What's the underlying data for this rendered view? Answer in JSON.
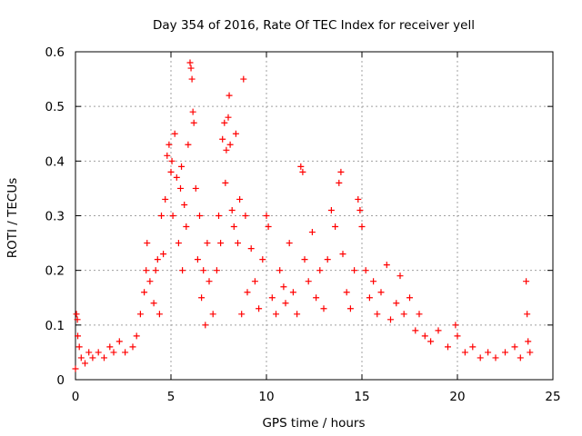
{
  "chart_data": {
    "type": "scatter",
    "title": "Day 354 of 2016, Rate Of TEC Index for receiver yell",
    "xlabel": "GPS time / hours",
    "ylabel": "ROTI / TECUs",
    "xlim": [
      0,
      25
    ],
    "ylim": [
      0,
      0.6
    ],
    "xticks": [
      0,
      5,
      10,
      15,
      20,
      25
    ],
    "xtick_labels": [
      "0",
      "5",
      "10",
      "15",
      "20",
      "25"
    ],
    "yticks": [
      0,
      0.1,
      0.2,
      0.3,
      0.4,
      0.5,
      0.6
    ],
    "ytick_labels": [
      "0",
      "0.1",
      "0.2",
      "0.3",
      "0.4",
      "0.5",
      "0.6"
    ],
    "grid": true,
    "marker": "+",
    "series": [
      {
        "name": "ROTI",
        "color": "#ff0000",
        "points": [
          [
            0.0,
            0.02
          ],
          [
            0.05,
            0.12
          ],
          [
            0.1,
            0.11
          ],
          [
            0.12,
            0.08
          ],
          [
            0.2,
            0.06
          ],
          [
            0.3,
            0.04
          ],
          [
            0.5,
            0.03
          ],
          [
            0.7,
            0.05
          ],
          [
            0.9,
            0.04
          ],
          [
            1.2,
            0.05
          ],
          [
            1.5,
            0.04
          ],
          [
            1.8,
            0.06
          ],
          [
            2.0,
            0.05
          ],
          [
            2.3,
            0.07
          ],
          [
            2.6,
            0.05
          ],
          [
            3.0,
            0.06
          ],
          [
            3.2,
            0.08
          ],
          [
            3.4,
            0.12
          ],
          [
            3.6,
            0.16
          ],
          [
            3.7,
            0.2
          ],
          [
            3.75,
            0.25
          ],
          [
            3.9,
            0.18
          ],
          [
            4.1,
            0.14
          ],
          [
            4.2,
            0.2
          ],
          [
            4.3,
            0.22
          ],
          [
            4.4,
            0.12
          ],
          [
            4.5,
            0.3
          ],
          [
            4.6,
            0.23
          ],
          [
            4.7,
            0.33
          ],
          [
            4.8,
            0.41
          ],
          [
            4.9,
            0.43
          ],
          [
            5.0,
            0.38
          ],
          [
            5.05,
            0.4
          ],
          [
            5.1,
            0.3
          ],
          [
            5.2,
            0.45
          ],
          [
            5.3,
            0.37
          ],
          [
            5.4,
            0.25
          ],
          [
            5.5,
            0.35
          ],
          [
            5.55,
            0.39
          ],
          [
            5.6,
            0.2
          ],
          [
            5.7,
            0.32
          ],
          [
            5.8,
            0.28
          ],
          [
            5.9,
            0.43
          ],
          [
            6.0,
            0.58
          ],
          [
            6.05,
            0.57
          ],
          [
            6.1,
            0.55
          ],
          [
            6.15,
            0.49
          ],
          [
            6.2,
            0.47
          ],
          [
            6.3,
            0.35
          ],
          [
            6.4,
            0.22
          ],
          [
            6.5,
            0.3
          ],
          [
            6.6,
            0.15
          ],
          [
            6.7,
            0.2
          ],
          [
            6.8,
            0.1
          ],
          [
            6.9,
            0.25
          ],
          [
            7.0,
            0.18
          ],
          [
            7.2,
            0.12
          ],
          [
            7.4,
            0.2
          ],
          [
            7.5,
            0.3
          ],
          [
            7.6,
            0.25
          ],
          [
            7.7,
            0.44
          ],
          [
            7.8,
            0.47
          ],
          [
            7.85,
            0.36
          ],
          [
            7.9,
            0.42
          ],
          [
            8.0,
            0.48
          ],
          [
            8.05,
            0.52
          ],
          [
            8.1,
            0.43
          ],
          [
            8.2,
            0.31
          ],
          [
            8.3,
            0.28
          ],
          [
            8.4,
            0.45
          ],
          [
            8.5,
            0.25
          ],
          [
            8.6,
            0.33
          ],
          [
            8.7,
            0.12
          ],
          [
            8.8,
            0.55
          ],
          [
            8.9,
            0.3
          ],
          [
            9.0,
            0.16
          ],
          [
            9.2,
            0.24
          ],
          [
            9.4,
            0.18
          ],
          [
            9.6,
            0.13
          ],
          [
            9.8,
            0.22
          ],
          [
            10.0,
            0.3
          ],
          [
            10.1,
            0.28
          ],
          [
            10.3,
            0.15
          ],
          [
            10.5,
            0.12
          ],
          [
            10.7,
            0.2
          ],
          [
            10.9,
            0.17
          ],
          [
            11.0,
            0.14
          ],
          [
            11.2,
            0.25
          ],
          [
            11.4,
            0.16
          ],
          [
            11.6,
            0.12
          ],
          [
            11.8,
            0.39
          ],
          [
            11.9,
            0.38
          ],
          [
            12.0,
            0.22
          ],
          [
            12.2,
            0.18
          ],
          [
            12.4,
            0.27
          ],
          [
            12.6,
            0.15
          ],
          [
            12.8,
            0.2
          ],
          [
            13.0,
            0.13
          ],
          [
            13.2,
            0.22
          ],
          [
            13.4,
            0.31
          ],
          [
            13.6,
            0.28
          ],
          [
            13.8,
            0.36
          ],
          [
            13.9,
            0.38
          ],
          [
            14.0,
            0.23
          ],
          [
            14.2,
            0.16
          ],
          [
            14.4,
            0.13
          ],
          [
            14.6,
            0.2
          ],
          [
            14.8,
            0.33
          ],
          [
            14.9,
            0.31
          ],
          [
            15.0,
            0.28
          ],
          [
            15.2,
            0.2
          ],
          [
            15.4,
            0.15
          ],
          [
            15.6,
            0.18
          ],
          [
            15.8,
            0.12
          ],
          [
            16.0,
            0.16
          ],
          [
            16.3,
            0.21
          ],
          [
            16.5,
            0.11
          ],
          [
            16.8,
            0.14
          ],
          [
            17.0,
            0.19
          ],
          [
            17.2,
            0.12
          ],
          [
            17.5,
            0.15
          ],
          [
            17.8,
            0.09
          ],
          [
            18.0,
            0.12
          ],
          [
            18.3,
            0.08
          ],
          [
            18.6,
            0.07
          ],
          [
            19.0,
            0.09
          ],
          [
            19.5,
            0.06
          ],
          [
            19.9,
            0.1
          ],
          [
            20.0,
            0.08
          ],
          [
            20.4,
            0.05
          ],
          [
            20.8,
            0.06
          ],
          [
            21.2,
            0.04
          ],
          [
            21.6,
            0.05
          ],
          [
            22.0,
            0.04
          ],
          [
            22.5,
            0.05
          ],
          [
            23.0,
            0.06
          ],
          [
            23.3,
            0.04
          ],
          [
            23.6,
            0.18
          ],
          [
            23.65,
            0.12
          ],
          [
            23.7,
            0.07
          ],
          [
            23.8,
            0.05
          ]
        ]
      }
    ]
  }
}
